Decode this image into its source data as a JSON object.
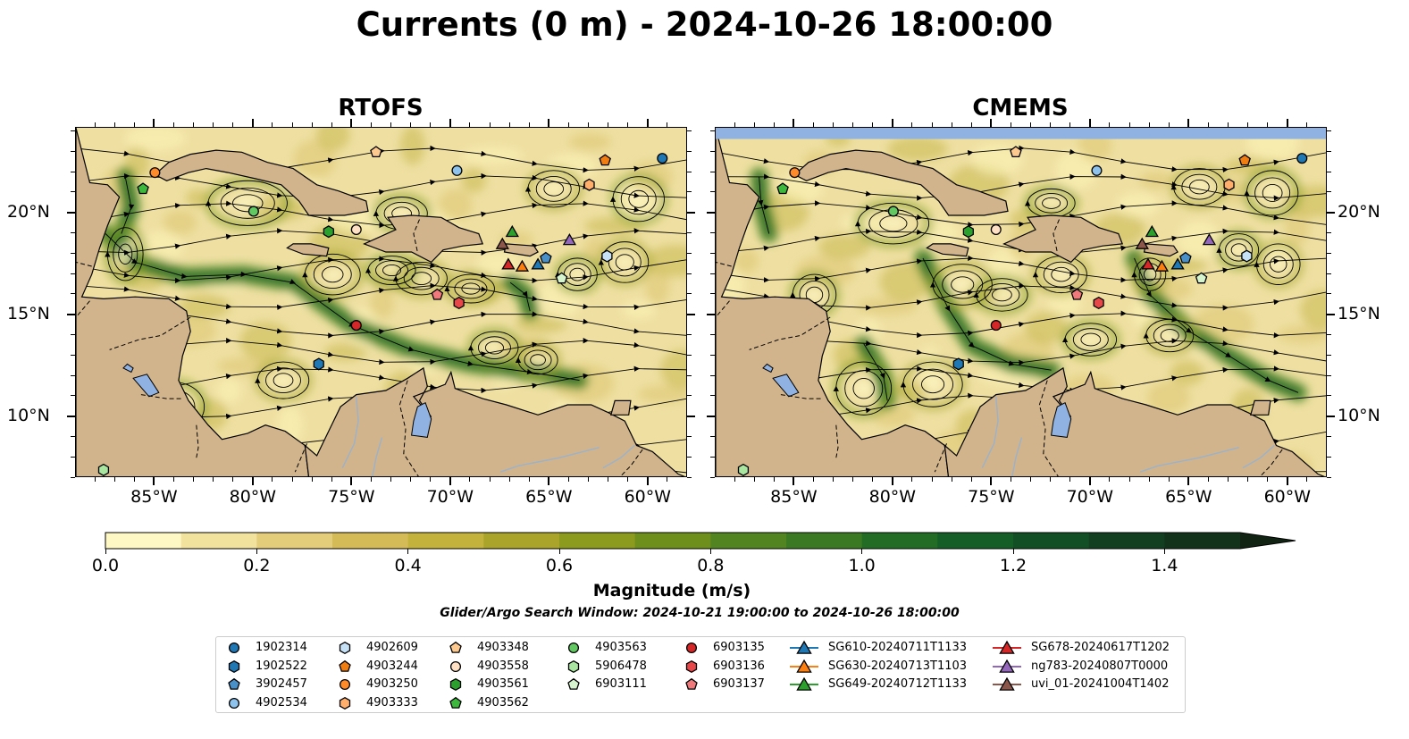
{
  "title": "Currents (0 m) - 2024-10-26 18:00:00",
  "panels": [
    {
      "title": "RTOFS"
    },
    {
      "title": "CMEMS"
    }
  ],
  "map_extent": {
    "lon_min": -89,
    "lon_max": -58,
    "lat_min": 7,
    "lat_max": 24.2
  },
  "x_ticks": [
    {
      "lon": -85,
      "label": "85°W"
    },
    {
      "lon": -80,
      "label": "80°W"
    },
    {
      "lon": -75,
      "label": "75°W"
    },
    {
      "lon": -70,
      "label": "70°W"
    },
    {
      "lon": -65,
      "label": "65°W"
    },
    {
      "lon": -60,
      "label": "60°W"
    }
  ],
  "y_ticks": [
    {
      "lat": 20,
      "label": "20°N"
    },
    {
      "lat": 15,
      "label": "15°N"
    },
    {
      "lat": 10,
      "label": "10°N"
    }
  ],
  "colorbar": {
    "label": "Magnitude (m/s)",
    "range": [
      0,
      1.5
    ],
    "extend": "max",
    "ticks": [
      {
        "value": 0.0,
        "label": "0.0"
      },
      {
        "value": 0.2,
        "label": "0.2"
      },
      {
        "value": 0.4,
        "label": "0.4"
      },
      {
        "value": 0.6,
        "label": "0.6"
      },
      {
        "value": 0.8,
        "label": "0.8"
      },
      {
        "value": 1.0,
        "label": "1.0"
      },
      {
        "value": 1.2,
        "label": "1.2"
      },
      {
        "value": 1.4,
        "label": "1.4"
      }
    ],
    "colors": [
      "#fef8c4",
      "#f1e29e",
      "#e4cd7a",
      "#d5bb58",
      "#c3b23c",
      "#aaa42a",
      "#8c9a1d",
      "#6e8f1c",
      "#528521",
      "#3b7a23",
      "#226c25",
      "#155e27",
      "#124f24",
      "#123f1f",
      "#13321a",
      "#112414"
    ]
  },
  "colors": {
    "land": "#d1b48b",
    "water_fill": "#8fb2e2",
    "river": "#9ab2cc"
  },
  "search_window": "Glider/Argo Search Window: 2024-10-21 19:00:00 to 2024-10-26 18:00:00",
  "legend": [
    {
      "label": "1902314",
      "marker": "circle",
      "color": "#1f77b4"
    },
    {
      "label": "1902522",
      "marker": "hexagon",
      "color": "#1f77b4"
    },
    {
      "label": "3902457",
      "marker": "pentagon",
      "color": "#4a90c8"
    },
    {
      "label": "4902534",
      "marker": "circle",
      "color": "#8dc3ec"
    },
    {
      "label": "4902609",
      "marker": "hexagon",
      "color": "#c6e0f5"
    },
    {
      "label": "4903244",
      "marker": "pentagon",
      "color": "#f07d12"
    },
    {
      "label": "4903250",
      "marker": "circle",
      "color": "#ff8a2a"
    },
    {
      "label": "4903333",
      "marker": "hexagon",
      "color": "#ffae6b"
    },
    {
      "label": "4903348",
      "marker": "pentagon",
      "color": "#fdc98e"
    },
    {
      "label": "4903558",
      "marker": "circle",
      "color": "#ffe0c4"
    },
    {
      "label": "4903561",
      "marker": "hexagon",
      "color": "#2ca02c"
    },
    {
      "label": "4903562",
      "marker": "pentagon",
      "color": "#3cb83c"
    },
    {
      "label": "4903563",
      "marker": "circle",
      "color": "#62c862"
    },
    {
      "label": "5906478",
      "marker": "hexagon",
      "color": "#a9e6a0"
    },
    {
      "label": "6903111",
      "marker": "pentagon",
      "color": "#d6f5cf"
    },
    {
      "label": "6903135",
      "marker": "circle",
      "color": "#d62728"
    },
    {
      "label": "6903136",
      "marker": "hexagon",
      "color": "#e84749"
    },
    {
      "label": "6903137",
      "marker": "pentagon",
      "color": "#f07a7b"
    },
    {
      "label": "SG610-20240711T1133",
      "marker": "triangle",
      "color": "#1f77b4"
    },
    {
      "label": "SG630-20240713T1103",
      "marker": "triangle",
      "color": "#ff7f0e"
    },
    {
      "label": "SG649-20240712T1133",
      "marker": "triangle",
      "color": "#2ca02c"
    },
    {
      "label": "SG678-20240617T1202",
      "marker": "triangle",
      "color": "#d62728"
    },
    {
      "label": "ng783-20240807T0000",
      "marker": "triangle",
      "color": "#9467bd"
    },
    {
      "label": "uvi_01-20241004T1402",
      "marker": "triangle",
      "color": "#8c564b"
    }
  ],
  "platform_positions": [
    {
      "label": "1902314",
      "lon": -59.3,
      "lat": 22.7
    },
    {
      "label": "1902522",
      "lon": -76.7,
      "lat": 12.6
    },
    {
      "label": "3902457",
      "lon": -65.2,
      "lat": 17.8
    },
    {
      "label": "4902534",
      "lon": -69.7,
      "lat": 22.1
    },
    {
      "label": "4902609",
      "lon": -62.1,
      "lat": 17.9
    },
    {
      "label": "4903244",
      "lon": -62.2,
      "lat": 22.6
    },
    {
      "label": "4903250",
      "lon": -85.0,
      "lat": 22.0
    },
    {
      "label": "4903333",
      "lon": -63.0,
      "lat": 21.4
    },
    {
      "label": "4903348",
      "lon": -73.8,
      "lat": 23.0
    },
    {
      "label": "4903558",
      "lon": -74.8,
      "lat": 19.2
    },
    {
      "label": "4903561",
      "lon": -76.2,
      "lat": 19.1
    },
    {
      "label": "4903562",
      "lon": -85.6,
      "lat": 21.2
    },
    {
      "label": "4903563",
      "lon": -80.0,
      "lat": 20.1
    },
    {
      "label": "5906478",
      "lon": -87.6,
      "lat": 7.4
    },
    {
      "label": "6903111",
      "lon": -64.4,
      "lat": 16.8
    },
    {
      "label": "6903135",
      "lon": -74.8,
      "lat": 14.5
    },
    {
      "label": "6903136",
      "lon": -69.6,
      "lat": 15.6
    },
    {
      "label": "6903137",
      "lon": -70.7,
      "lat": 16.0
    },
    {
      "label": "SG610-20240711T1133",
      "lon": -65.6,
      "lat": 17.5
    },
    {
      "label": "SG630-20240713T1103",
      "lon": -66.4,
      "lat": 17.4
    },
    {
      "label": "SG649-20240712T1133",
      "lon": -66.9,
      "lat": 19.1
    },
    {
      "label": "SG678-20240617T1202",
      "lon": -67.1,
      "lat": 17.5
    },
    {
      "label": "ng783-20240807T0000",
      "lon": -64.0,
      "lat": 18.7
    },
    {
      "label": "uvi_01-20241004T1402",
      "lon": -67.4,
      "lat": 18.5
    }
  ]
}
